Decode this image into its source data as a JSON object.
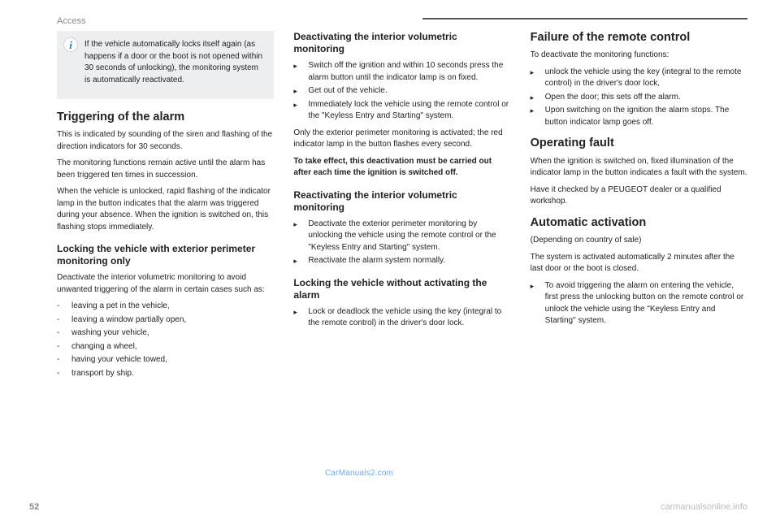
{
  "header": {
    "section": "Access"
  },
  "col1": {
    "info_box": "If the vehicle automatically locks itself again (as happens if a door or the boot is not opened within 30 seconds of unlocking), the monitoring system is automatically reactivated.",
    "h2a": "Triggering of the alarm",
    "p1": "This is indicated by sounding of the siren and flashing of the direction indicators for 30 seconds.",
    "p2": "The monitoring functions remain active until the alarm has been triggered ten times in succession.",
    "p3": "When the vehicle is unlocked, rapid flashing of the indicator lamp in the button indicates that the alarm was triggered during your absence. When the ignition is switched on, this flashing stops immediately.",
    "h3a": "Locking the vehicle with exterior perimeter monitoring only",
    "p4": "Deactivate the interior volumetric monitoring to avoid unwanted triggering of the alarm in certain cases such as:",
    "dashes": [
      "leaving a pet in the vehicle,",
      "leaving a window partially open,",
      "washing your vehicle,",
      "changing a wheel,",
      "having your vehicle towed,",
      "transport by ship."
    ]
  },
  "col2": {
    "h3a": "Deactivating the interior volumetric monitoring",
    "b1": [
      "Switch off the ignition and within 10 seconds press the alarm button until the indicator lamp is on fixed.",
      "Get out of the vehicle.",
      "Immediately lock the vehicle using the remote control or the \"Keyless Entry and Starting\" system."
    ],
    "p1": "Only the exterior perimeter monitoring is activated; the red indicator lamp in the button flashes every second.",
    "p2_bold": "To take effect, this deactivation must be carried out after each time the ignition is switched off.",
    "h3b": "Reactivating the interior volumetric monitoring",
    "b2": [
      "Deactivate the exterior perimeter monitoring by unlocking the vehicle using the remote control or the \"Keyless Entry and Starting\" system.",
      "Reactivate the alarm system normally."
    ],
    "h3c": "Locking the vehicle without activating the alarm",
    "b3": [
      "Lock or deadlock the vehicle using the key (integral to the remote control) in the driver's door lock."
    ]
  },
  "col3": {
    "h2a": "Failure of the remote control",
    "p1": "To deactivate the monitoring functions:",
    "b1": [
      "unlock the vehicle using the key (integral to the remote control) in the driver's door lock,",
      "Open the door; this sets off the alarm.",
      "Upon switching on the ignition the alarm stops. The button indicator lamp goes off."
    ],
    "h2b": "Operating fault",
    "p2": "When the ignition is switched on, fixed illumination of the indicator lamp in the button indicates a fault with the system.",
    "p3": "Have it checked by a PEUGEOT dealer or a qualified workshop.",
    "h2c": "Automatic activation",
    "p4": "(Depending on country of sale)",
    "p5": "The system is activated automatically 2 minutes after the last door or the boot is closed.",
    "b2": [
      "To avoid triggering the alarm on entering the vehicle, first press the unlocking button on the remote control or unlock the vehicle using the \"Keyless Entry and Starting\" system."
    ]
  },
  "footer": {
    "page_num": "52",
    "watermark": "carmanualsonline.info",
    "center_wm": "CarManuals2.com"
  }
}
